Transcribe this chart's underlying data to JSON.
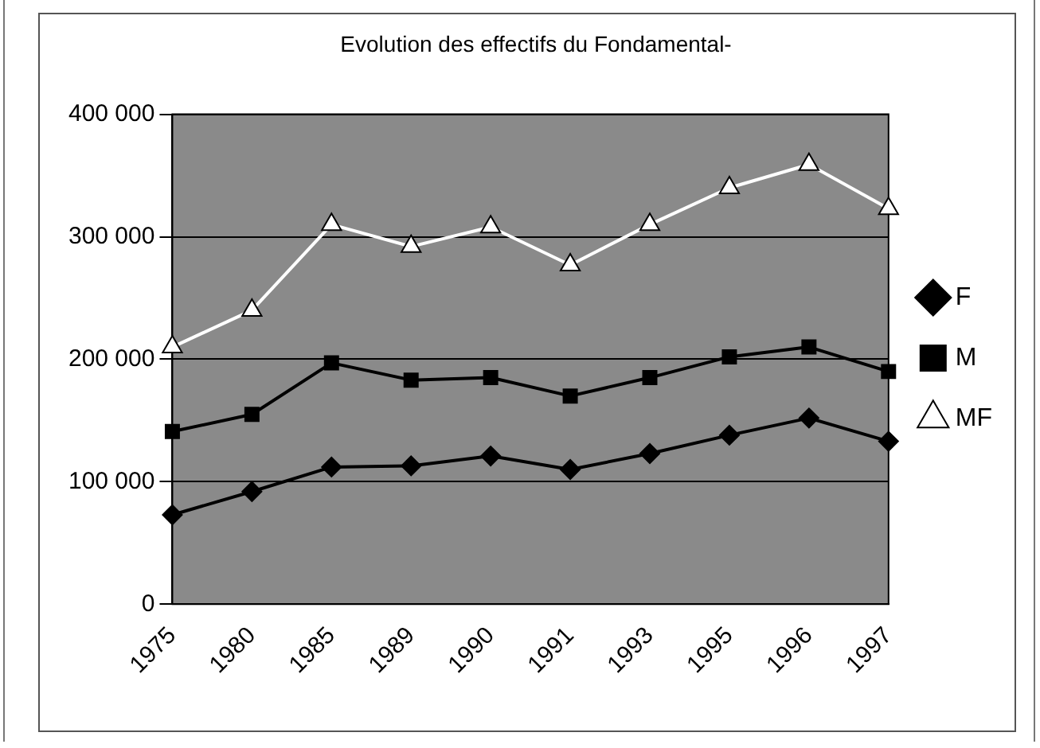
{
  "chart_data": {
    "type": "line",
    "title": "Evolution des effectifs du Fondamental-",
    "categories": [
      "1975",
      "1980",
      "1985",
      "1989",
      "1990",
      "1991",
      "1993",
      "1995",
      "1996",
      "1997"
    ],
    "series": [
      {
        "name": "F",
        "color": "#000000",
        "marker": "diamond",
        "values": [
          73000,
          92000,
          112000,
          113000,
          121000,
          110000,
          123000,
          138000,
          152000,
          133000
        ]
      },
      {
        "name": "M",
        "color": "#000000",
        "marker": "square",
        "values": [
          141000,
          155000,
          197000,
          183000,
          185000,
          170000,
          185000,
          202000,
          210000,
          190000
        ]
      },
      {
        "name": "MF",
        "color": "#ffffff",
        "marker": "triangle",
        "values": [
          210000,
          240000,
          310000,
          292000,
          308000,
          277000,
          310000,
          340000,
          359000,
          323000
        ]
      }
    ],
    "ylim": [
      0,
      400000
    ],
    "yticks": [
      {
        "value": 0,
        "label": "0"
      },
      {
        "value": 100000,
        "label": "100 000"
      },
      {
        "value": 200000,
        "label": "200 000"
      },
      {
        "value": 300000,
        "label": "300 000"
      },
      {
        "value": 400000,
        "label": "400 000"
      }
    ],
    "grid": "y",
    "legend": "right"
  }
}
